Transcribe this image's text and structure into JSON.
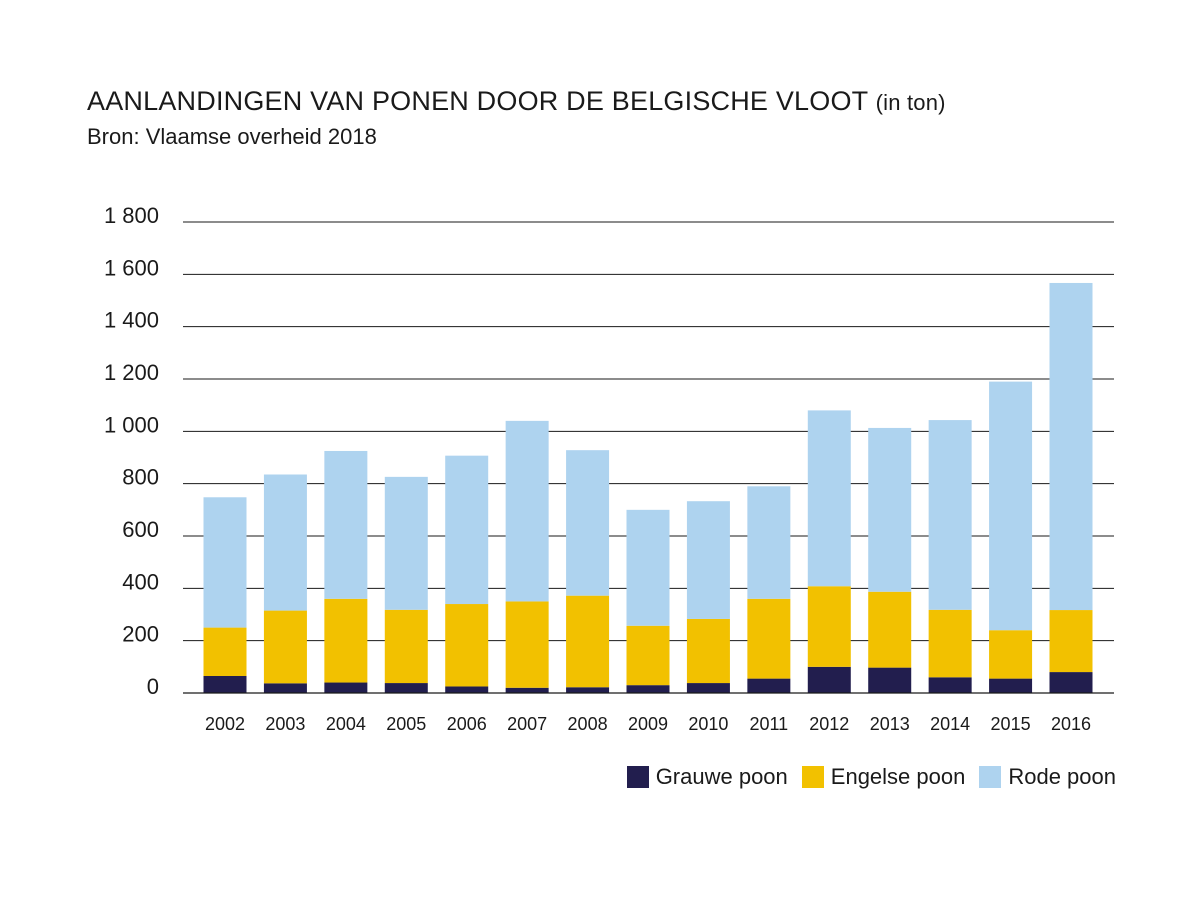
{
  "title": "AANLANDINGEN VAN PONEN DOOR DE BELGISCHE VLOOT",
  "title_unit": "(in ton)",
  "subtitle": "Bron: Vlaamse overheid 2018",
  "colors": {
    "grauwe": "#221e4e",
    "engelse": "#f2c100",
    "rode": "#aed3ef",
    "grid": "#1a1a1a"
  },
  "chart_data": {
    "type": "bar",
    "stacked": true,
    "title": "AANLANDINGEN VAN PONEN DOOR DE BELGISCHE VLOOT (in ton)",
    "subtitle": "Bron: Vlaamse overheid 2018",
    "xlabel": "",
    "ylabel": "",
    "ylim": [
      0,
      1800
    ],
    "y_ticks": [
      0,
      200,
      400,
      600,
      800,
      1000,
      1200,
      1400,
      1600,
      1800
    ],
    "y_tick_labels": [
      "0",
      "200",
      "400",
      "600",
      "800",
      "1 000",
      "1 200",
      "1 400",
      "1 600",
      "1 800"
    ],
    "grid": true,
    "legend_position": "bottom-right",
    "categories": [
      "2002",
      "2003",
      "2004",
      "2005",
      "2006",
      "2007",
      "2008",
      "2009",
      "2010",
      "2011",
      "2012",
      "2013",
      "2014",
      "2015",
      "2016"
    ],
    "series": [
      {
        "name": "Grauwe poon",
        "color": "#221e4e",
        "values": [
          65,
          37,
          40,
          38,
          25,
          20,
          22,
          30,
          38,
          55,
          100,
          97,
          60,
          55,
          80
        ]
      },
      {
        "name": "Engelse poon",
        "color": "#f2c100",
        "values": [
          185,
          278,
          320,
          280,
          315,
          330,
          350,
          227,
          245,
          305,
          308,
          290,
          258,
          185,
          237
        ]
      },
      {
        "name": "Rode poon",
        "color": "#aed3ef",
        "values": [
          498,
          520,
          565,
          508,
          567,
          690,
          556,
          443,
          450,
          430,
          672,
          626,
          725,
          950,
          1250
        ]
      }
    ]
  }
}
